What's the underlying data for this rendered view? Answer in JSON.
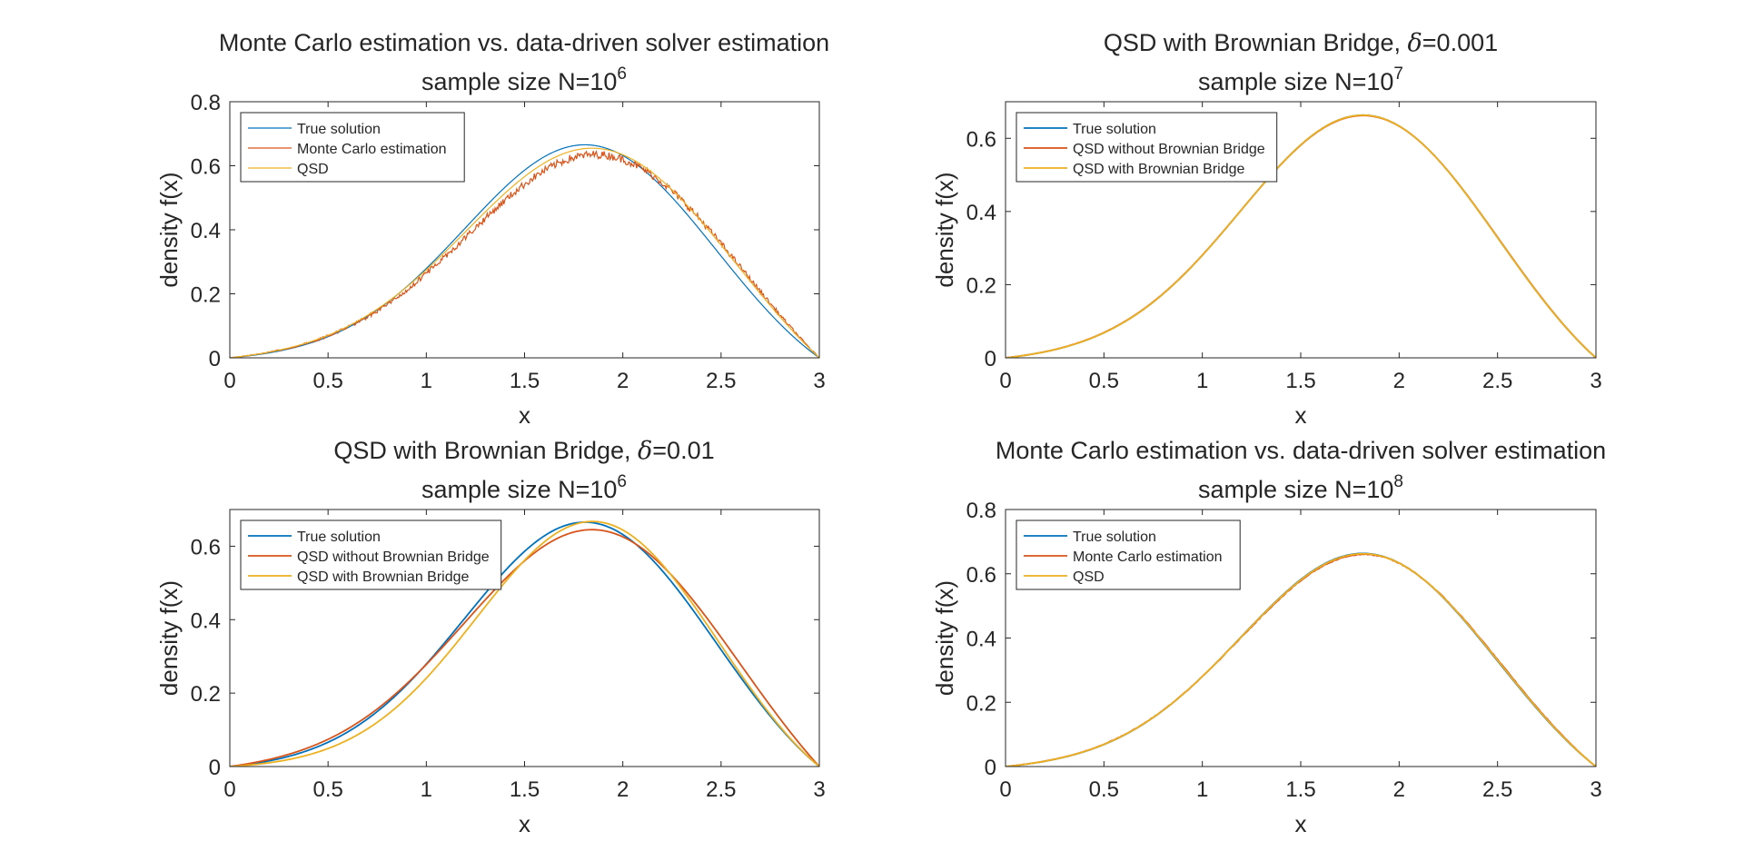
{
  "colors": {
    "true_solution": "#0072BD",
    "monte_carlo": "#D95319",
    "qsd": "#EDB120",
    "no_bridge": "#D95319",
    "with_bridge": "#EDB120",
    "axis": "#262626"
  },
  "chart_data": [
    {
      "type": "line",
      "title": "Monte Carlo estimation vs. data-driven solver estimation",
      "subtitle": "sample size N=10",
      "subtitle_sup": "6",
      "xlabel": "x",
      "ylabel": "density f(x)",
      "xlim": [
        0,
        3
      ],
      "ylim": [
        0,
        0.8
      ],
      "xticks": [
        0,
        0.5,
        1,
        1.5,
        2,
        2.5,
        3
      ],
      "xtick_labels": [
        "0",
        "0.5",
        "1",
        "1.5",
        "2",
        "2.5",
        "3"
      ],
      "yticks": [
        0,
        0.2,
        0.4,
        0.6,
        0.8
      ],
      "ytick_labels": [
        "0",
        "0.2",
        "0.4",
        "0.6",
        "0.8"
      ],
      "legend": "top-left",
      "series": [
        {
          "name": "True solution",
          "color_key": "true_solution",
          "amp": 0.685,
          "mu": 1.82,
          "sigma": 0.62,
          "noise": 0,
          "width": 1.2
        },
        {
          "name": "Monte Carlo estimation",
          "color_key": "monte_carlo",
          "amp": 0.655,
          "mu": 1.88,
          "sigma": 0.66,
          "noise": 0.012,
          "width": 1.2
        },
        {
          "name": "QSD",
          "color_key": "qsd",
          "amp": 0.675,
          "mu": 1.86,
          "sigma": 0.65,
          "noise": 0,
          "width": 1.2
        }
      ]
    },
    {
      "type": "line",
      "title": "QSD with Brownian Bridge, δ=0.001",
      "subtitle": "sample size N=10",
      "subtitle_sup": "7",
      "xlabel": "x",
      "ylabel": "density f(x)",
      "xlim": [
        0,
        3
      ],
      "ylim": [
        0,
        0.7
      ],
      "xticks": [
        0,
        0.5,
        1,
        1.5,
        2,
        2.5,
        3
      ],
      "xtick_labels": [
        "0",
        "0.5",
        "1",
        "1.5",
        "2",
        "2.5",
        "3"
      ],
      "yticks": [
        0,
        0.2,
        0.4,
        0.6
      ],
      "ytick_labels": [
        "0",
        "0.2",
        "0.4",
        "0.6"
      ],
      "legend": "top-left",
      "series": [
        {
          "name": "True solution",
          "color_key": "true_solution",
          "amp": 0.683,
          "mu": 1.83,
          "sigma": 0.63,
          "noise": 0,
          "width": 1.8
        },
        {
          "name": "QSD without Brownian Bridge",
          "color_key": "no_bridge",
          "amp": 0.682,
          "mu": 1.831,
          "sigma": 0.632,
          "noise": 0,
          "width": 1.8
        },
        {
          "name": "QSD with Brownian Bridge",
          "color_key": "with_bridge",
          "amp": 0.683,
          "mu": 1.83,
          "sigma": 0.63,
          "noise": 0,
          "width": 1.8
        }
      ]
    },
    {
      "type": "line",
      "title": "QSD with Brownian Bridge, δ=0.01",
      "subtitle": "sample size N=10",
      "subtitle_sup": "6",
      "xlabel": "x",
      "ylabel": "density f(x)",
      "xlim": [
        0,
        3
      ],
      "ylim": [
        0,
        0.7
      ],
      "xticks": [
        0,
        0.5,
        1,
        1.5,
        2,
        2.5,
        3
      ],
      "xtick_labels": [
        "0",
        "0.5",
        "1",
        "1.5",
        "2",
        "2.5",
        "3"
      ],
      "yticks": [
        0,
        0.2,
        0.4,
        0.6
      ],
      "ytick_labels": [
        "0",
        "0.2",
        "0.4",
        "0.6"
      ],
      "legend": "top-left",
      "series": [
        {
          "name": "True solution",
          "color_key": "true_solution",
          "amp": 0.685,
          "mu": 1.82,
          "sigma": 0.62,
          "noise": 0,
          "width": 1.8
        },
        {
          "name": "QSD without Brownian Bridge",
          "color_key": "no_bridge",
          "amp": 0.665,
          "mu": 1.86,
          "sigma": 0.66,
          "noise": 0,
          "width": 1.8
        },
        {
          "name": "QSD with Brownian Bridge",
          "color_key": "with_bridge",
          "amp": 0.688,
          "mu": 1.86,
          "sigma": 0.6,
          "noise": 0,
          "width": 1.8
        }
      ]
    },
    {
      "type": "line",
      "title": "Monte Carlo estimation vs. data-driven solver estimation",
      "subtitle": "sample size N=10",
      "subtitle_sup": "8",
      "xlabel": "x",
      "ylabel": "density f(x)",
      "xlim": [
        0,
        3
      ],
      "ylim": [
        0,
        0.8
      ],
      "xticks": [
        0,
        0.5,
        1,
        1.5,
        2,
        2.5,
        3
      ],
      "xtick_labels": [
        "0",
        "0.5",
        "1",
        "1.5",
        "2",
        "2.5",
        "3"
      ],
      "yticks": [
        0,
        0.2,
        0.4,
        0.6,
        0.8
      ],
      "ytick_labels": [
        "0",
        "0.2",
        "0.4",
        "0.6",
        "0.8"
      ],
      "legend": "top-left",
      "series": [
        {
          "name": "True solution",
          "color_key": "true_solution",
          "amp": 0.683,
          "mu": 1.83,
          "sigma": 0.63,
          "noise": 0,
          "width": 1.8
        },
        {
          "name": "Monte Carlo estimation",
          "color_key": "monte_carlo",
          "amp": 0.68,
          "mu": 1.835,
          "sigma": 0.635,
          "noise": 0.0015,
          "width": 1.8
        },
        {
          "name": "QSD",
          "color_key": "qsd",
          "amp": 0.682,
          "mu": 1.832,
          "sigma": 0.632,
          "noise": 0,
          "width": 1.8
        }
      ]
    }
  ]
}
